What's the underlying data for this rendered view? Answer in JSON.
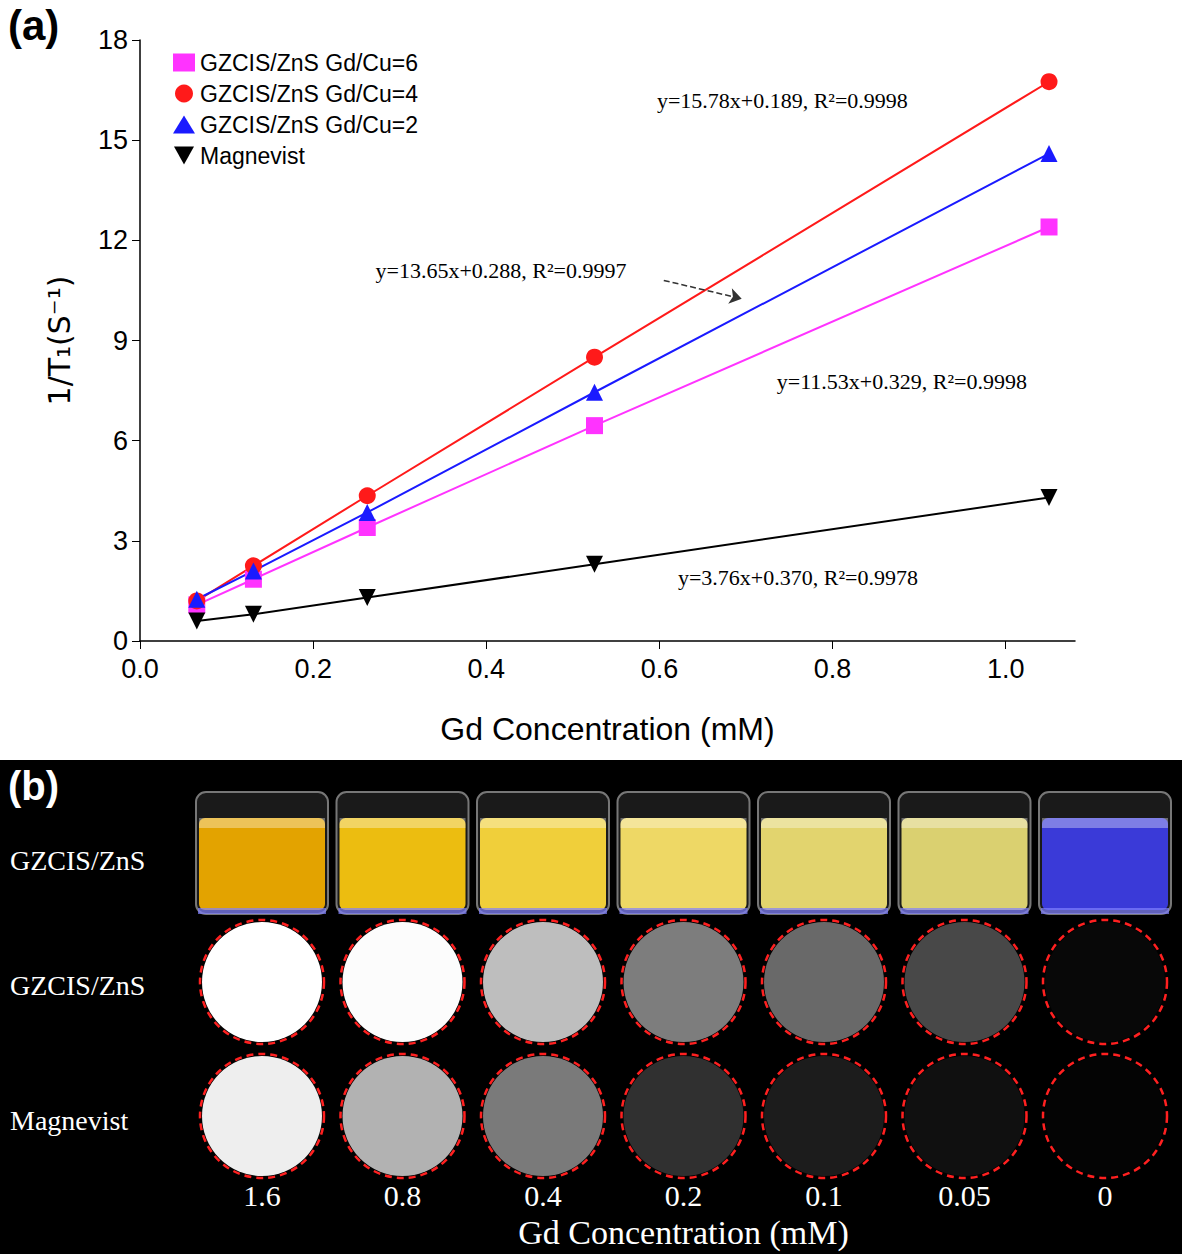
{
  "chart_data": {
    "type": "line",
    "panel_label": "(a)",
    "x_label": "Gd Concentration (mM)",
    "y_label": "1/T₁(S⁻¹)",
    "x": [
      0.0656,
      0.131,
      0.2625,
      0.525,
      1.05
    ],
    "series": [
      {
        "name": "GZCIS/ZnS Gd/Cu=6",
        "color": "#ff33ff",
        "marker": "square",
        "values": [
          1.08,
          1.85,
          3.4,
          6.45,
          12.4
        ]
      },
      {
        "name": "GZCIS/ZnS Gd/Cu=4",
        "color": "#ff1a1a",
        "marker": "circle",
        "values": [
          1.2,
          2.25,
          4.35,
          8.5,
          16.75
        ]
      },
      {
        "name": "GZCIS/ZnS Gd/Cu=2",
        "color": "#1a1aff",
        "marker": "triangle",
        "values": [
          1.25,
          2.1,
          3.85,
          7.45,
          14.6
        ]
      },
      {
        "name": "Magnevist",
        "color": "#000000",
        "marker": "triangle_down",
        "values": [
          0.6,
          0.8,
          1.3,
          2.3,
          4.3
        ]
      }
    ],
    "annotations": [
      "y=15.78x+0.189, R²=0.9998",
      "y=13.65x+0.288, R²=0.9997",
      "y=11.53x+0.329, R²=0.9998",
      "y=3.76x+0.370, R²=0.9978"
    ],
    "xlim": [
      0,
      1.08
    ],
    "xticks": [
      {
        "value": 0,
        "label": "0.0"
      },
      0.2,
      0.4,
      0.6,
      0.8,
      {
        "value": 1,
        "label": "1.0"
      }
    ],
    "ylim": [
      0,
      18
    ],
    "yticks": [
      0,
      3,
      6,
      9,
      12,
      15,
      18
    ],
    "grid": false,
    "legend": "upper left"
  },
  "image_panel": {
    "panel_label": "(b)",
    "row_labels": [
      "GZCIS/ZnS",
      "GZCIS/ZnS",
      "Magnevist"
    ],
    "concentrations": [
      1.6,
      0.8,
      0.4,
      0.2,
      0.1,
      0.05,
      0
    ],
    "x_label": "Gd Concentration (mM)"
  }
}
